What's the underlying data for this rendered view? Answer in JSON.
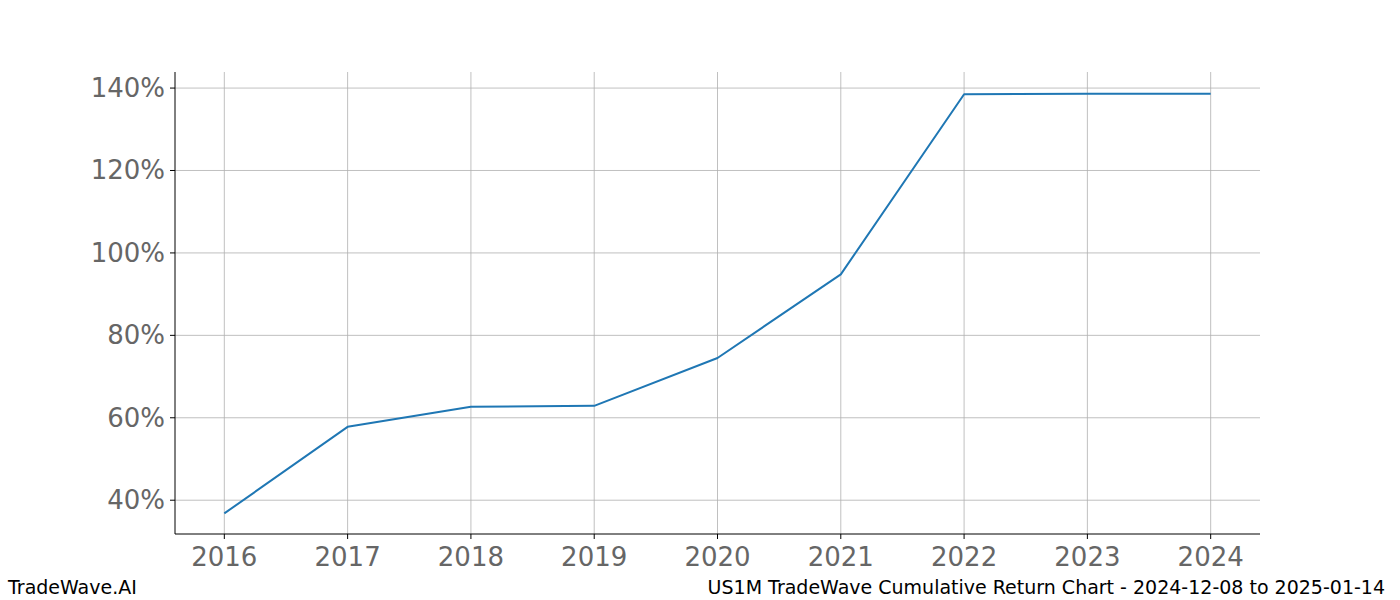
{
  "chart_data": {
    "type": "line",
    "title": "US1M TradeWave Cumulative Return Chart - 2024-12-08 to 2025-01-14",
    "source": "TradeWave.AI",
    "x": [
      2016,
      2017,
      2018,
      2019,
      2020,
      2021,
      2022,
      2023,
      2024
    ],
    "values": [
      36.8,
      57.8,
      62.7,
      62.9,
      74.5,
      94.8,
      138.5,
      138.6,
      138.6
    ],
    "color": "#1f77b4",
    "xlim": [
      2015.6,
      2024.4
    ],
    "xticks": [
      2016,
      2017,
      2018,
      2019,
      2020,
      2021,
      2022,
      2023,
      2024
    ],
    "ylim": [
      31.8,
      143.9
    ],
    "yticks": [
      {
        "value": 40,
        "label": "40%"
      },
      {
        "value": 60,
        "label": "60%"
      },
      {
        "value": 80,
        "label": "80%"
      },
      {
        "value": 100,
        "label": "100%"
      },
      {
        "value": 120,
        "label": "120%"
      },
      {
        "value": 140,
        "label": "140%"
      }
    ],
    "grid": true
  }
}
